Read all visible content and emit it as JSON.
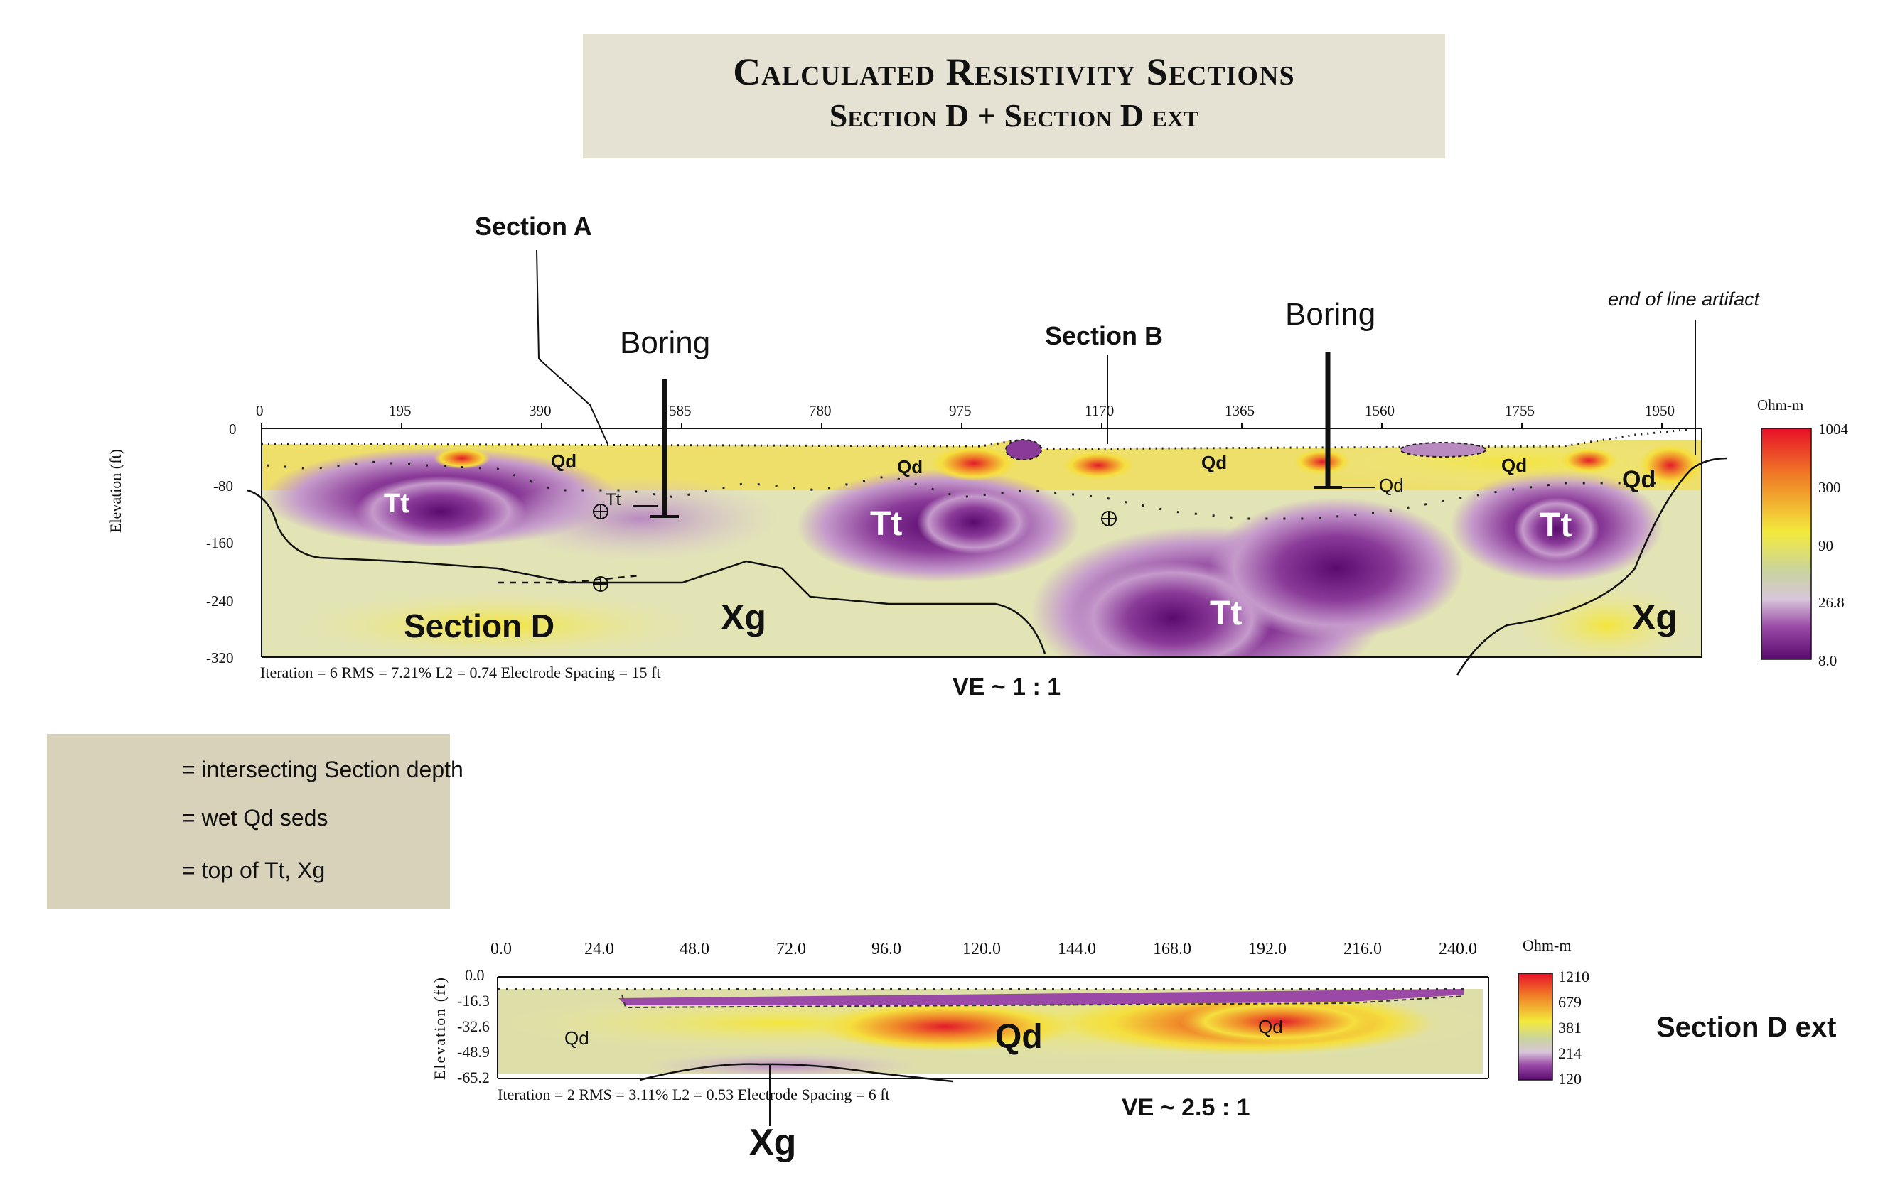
{
  "title": {
    "line1": "Calculated Resistivity Sections",
    "line2": "Section D + Section D ext"
  },
  "section_d": {
    "x_ticks": [
      "0",
      "195",
      "390",
      "585",
      "780",
      "975",
      "1170",
      "1365",
      "1560",
      "1755",
      "1950"
    ],
    "y_ticks": [
      "0",
      "-80",
      "-160",
      "-240",
      "-320"
    ],
    "y_axis_label": "Elevation (ft)",
    "colorbar_unit": "Ohm-m",
    "colorbar_ticks": [
      "1004",
      "300",
      "90",
      "26.8",
      "8.0"
    ],
    "stats": "Iteration = 6    RMS = 7.21%    L2 = 0.74    Electrode Spacing = 15 ft",
    "ve": "VE ~ 1 : 1",
    "name": "Section D",
    "callouts": {
      "section_a": "Section A",
      "section_b": "Section B",
      "boring_1": "Boring",
      "boring_2": "Boring",
      "artifact": "end of line artifact"
    },
    "units": {
      "qd_1": "Qd",
      "qd_2": "Qd",
      "qd_3": "Qd",
      "qd_4": "Qd",
      "qd_5": "Qd",
      "qd_6": "Qd",
      "tt_1": "Tt",
      "tt_2": "Tt",
      "tt_3": "Tt",
      "tt_4": "Tt",
      "tt_small": "Tt",
      "xg_1": "Xg",
      "xg_2": "Xg"
    }
  },
  "section_d_ext": {
    "x_ticks": [
      "0.0",
      "24.0",
      "48.0",
      "72.0",
      "96.0",
      "120.0",
      "144.0",
      "168.0",
      "192.0",
      "216.0",
      "240.0"
    ],
    "y_ticks": [
      "0.0",
      "-16.3",
      "-32.6",
      "-48.9",
      "-65.2"
    ],
    "y_axis_label": "Elevation (ft)",
    "colorbar_unit": "Ohm-m",
    "colorbar_ticks": [
      "1210",
      "679",
      "381",
      "214",
      "120"
    ],
    "stats": "Iteration = 2   RMS = 3.11%   L2 = 0.53   Electrode Spacing = 6 ft",
    "ve": "VE ~ 2.5 : 1",
    "name": "Section D ext",
    "units": {
      "qd_1": "Qd",
      "qd_2": "Qd",
      "qd_3": "Qd",
      "xg": "Xg"
    }
  },
  "legend": {
    "items": [
      {
        "symbol": "crosshair-circle",
        "text": "= intersecting Section depth"
      },
      {
        "symbol": "dashed-ellipse",
        "text": "= wet Qd seds"
      },
      {
        "symbol": "dot-triangle",
        "text": "= top of Tt, Xg"
      }
    ]
  },
  "colors": {
    "title_bg": "#e6e2d3",
    "legend_bg": "#d8d2bb",
    "high": "#e8102a",
    "mid": "#f3ea3c",
    "low": "#6a0f7a"
  }
}
